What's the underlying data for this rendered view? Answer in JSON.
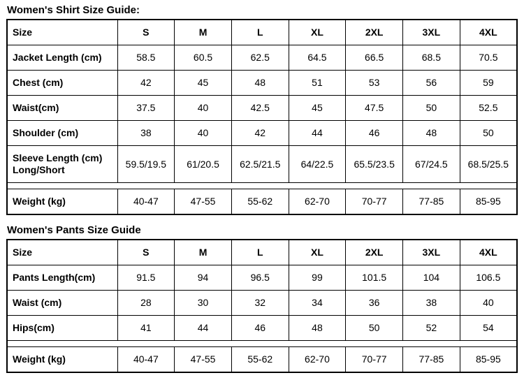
{
  "page": {
    "background_color": "#ffffff",
    "text_color": "#000000",
    "border_color": "#000000"
  },
  "tables": [
    {
      "title": "Women's Shirt Size Guide:",
      "columns": [
        "Size",
        "S",
        "M",
        "L",
        "XL",
        "2XL",
        "3XL",
        "4XL"
      ],
      "rows": [
        {
          "label": "Jacket Length (cm)",
          "values": [
            "58.5",
            "60.5",
            "62.5",
            "64.5",
            "66.5",
            "68.5",
            "70.5"
          ]
        },
        {
          "label": "Chest (cm)",
          "values": [
            "42",
            "45",
            "48",
            "51",
            "53",
            "56",
            "59"
          ]
        },
        {
          "label": "Waist(cm)",
          "values": [
            "37.5",
            "40",
            "42.5",
            "45",
            "47.5",
            "50",
            "52.5"
          ]
        },
        {
          "label": "Shoulder (cm)",
          "values": [
            "38",
            "40",
            "42",
            "44",
            "46",
            "48",
            "50"
          ]
        },
        {
          "label": "Sleeve Length (cm)\nLong/Short",
          "values": [
            "59.5/19.5",
            "61/20.5",
            "62.5/21.5",
            "64/22.5",
            "65.5/23.5",
            "67/24.5",
            "68.5/25.5"
          ]
        },
        {
          "spacer": true
        },
        {
          "label": "Weight (kg)",
          "values": [
            "40-47",
            "47-55",
            "55-62",
            "62-70",
            "70-77",
            "77-85",
            "85-95"
          ]
        }
      ]
    },
    {
      "title": "Women's Pants Size Guide",
      "columns": [
        "Size",
        "S",
        "M",
        "L",
        "XL",
        "2XL",
        "3XL",
        "4XL"
      ],
      "rows": [
        {
          "label": "Pants Length(cm)",
          "values": [
            "91.5",
            "94",
            "96.5",
            "99",
            "101.5",
            "104",
            "106.5"
          ]
        },
        {
          "label": "Waist (cm)",
          "values": [
            "28",
            "30",
            "32",
            "34",
            "36",
            "38",
            "40"
          ]
        },
        {
          "label": "Hips(cm)",
          "values": [
            "41",
            "44",
            "46",
            "48",
            "50",
            "52",
            "54"
          ]
        },
        {
          "spacer": true
        },
        {
          "label": "Weight (kg)",
          "values": [
            "40-47",
            "47-55",
            "55-62",
            "62-70",
            "70-77",
            "77-85",
            "85-95"
          ]
        }
      ]
    }
  ]
}
